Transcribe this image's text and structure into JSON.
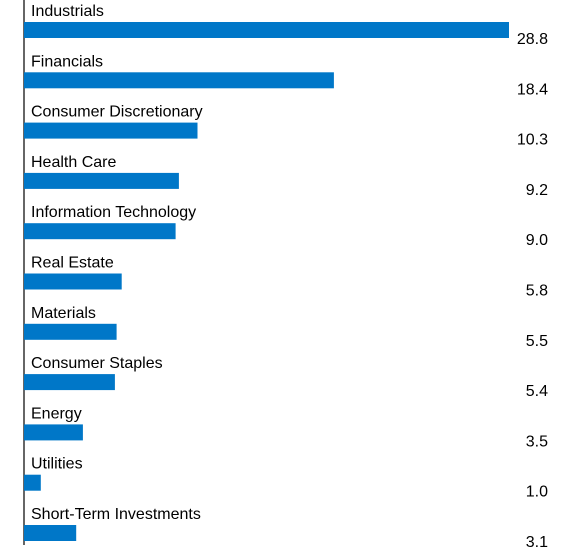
{
  "chart_data": {
    "type": "bar",
    "orientation": "horizontal",
    "categories": [
      "Industrials",
      "Financials",
      "Consumer Discretionary",
      "Health Care",
      "Information Technology",
      "Real Estate",
      "Materials",
      "Consumer Staples",
      "Energy",
      "Utilities",
      "Short-Term Investments"
    ],
    "values": [
      28.8,
      18.4,
      10.3,
      9.2,
      9.0,
      5.8,
      5.5,
      5.4,
      3.5,
      1.0,
      3.1
    ],
    "value_labels": [
      "28.8",
      "18.4",
      "10.3",
      "9.2",
      "9.0",
      "5.8",
      "5.5",
      "5.4",
      "3.5",
      "1.0",
      "3.1"
    ],
    "title": "",
    "xlabel": "",
    "ylabel": "",
    "xlim": [
      0,
      28.8
    ],
    "grid": false,
    "legend": "none",
    "colors": {
      "bar": "#0077c8",
      "axis": "#000000",
      "text": "#000000"
    }
  }
}
